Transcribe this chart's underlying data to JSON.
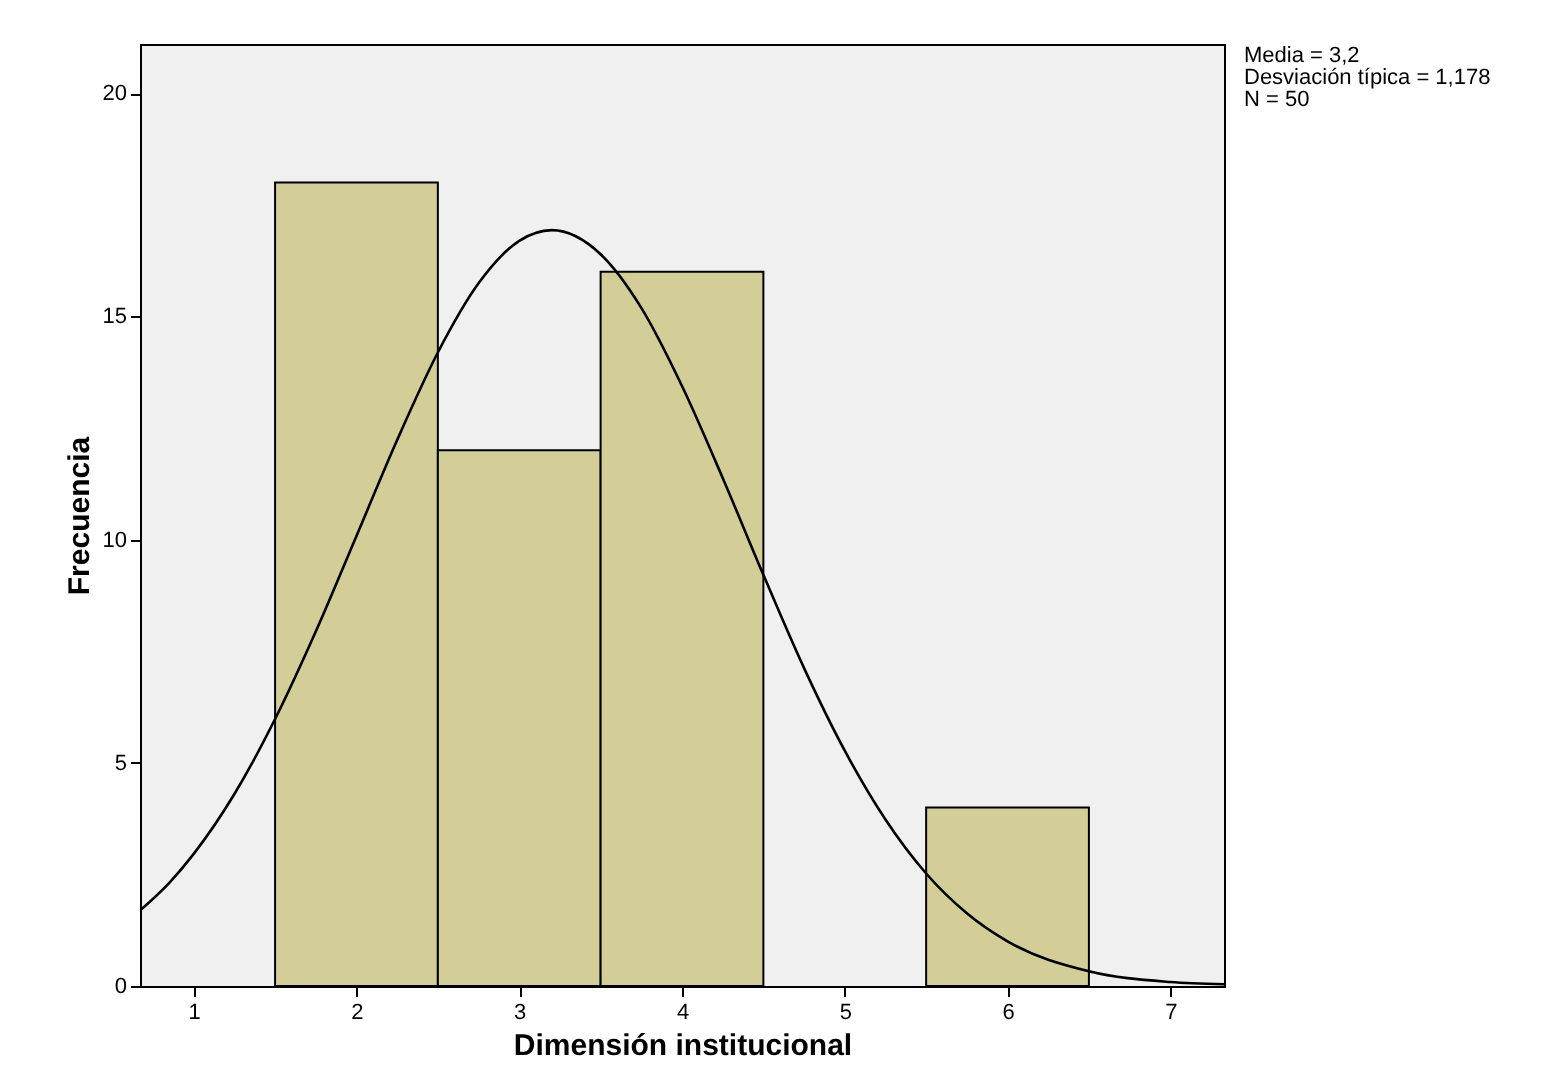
{
  "chart_data": {
    "type": "histogram",
    "xlabel": "Dimensión institucional",
    "ylabel": "Frecuencia",
    "bins": [
      1.5,
      2.5,
      3.5,
      4.5,
      5.5,
      6.5
    ],
    "values": [
      18,
      12,
      16,
      0,
      4
    ],
    "color": "#d3ce97",
    "series": [
      {
        "type": "line",
        "color": "#000000",
        "x": [
          0.67,
          0.85,
          1,
          1.25,
          1.5,
          1.75,
          2,
          2.25,
          2.5,
          2.75,
          3,
          3.2,
          3.5,
          3.75,
          4,
          4.25,
          4.5,
          4.75,
          5,
          5.25,
          5.5,
          5.75,
          6,
          6.5,
          7,
          7.33
        ],
        "values": [
          1.69,
          2.31,
          2.96,
          4.3,
          5.98,
          7.94,
          10.08,
          12.23,
          14.19,
          15.74,
          16.69,
          16.93,
          16.39,
          15.19,
          13.44,
          11.38,
          9.21,
          7.12,
          5.27,
          3.73,
          2.52,
          1.63,
          1.0,
          0.33,
          0.09,
          0.04
        ]
      }
    ],
    "xlim": [
      0.67,
      7.33
    ],
    "ylim": [
      0,
      21.1
    ],
    "xticks": [
      1,
      2,
      3,
      4,
      5,
      6,
      7
    ],
    "yticks": [
      0,
      5,
      10,
      15,
      20
    ],
    "grid": false,
    "annotations": [
      "Media = 3,2",
      "Desviación típica = 1,178",
      "N = 50"
    ]
  }
}
